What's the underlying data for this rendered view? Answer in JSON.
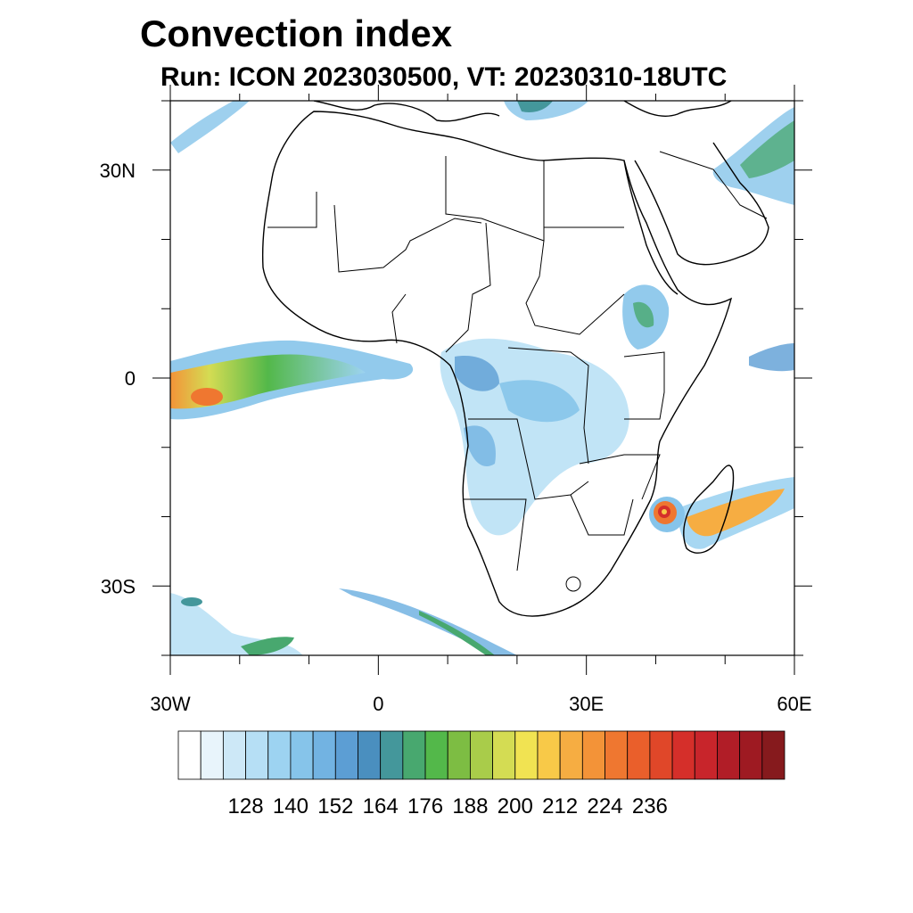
{
  "title": "Convection index",
  "subtitle": "Run: ICON 2023030500,  VT: 20230310-18UTC",
  "axes": {
    "lat_ticks": [
      {
        "value": 30,
        "label": "30N"
      },
      {
        "value": 0,
        "label": "0"
      },
      {
        "value": -30,
        "label": "30S"
      }
    ],
    "lon_ticks": [
      {
        "value": -30,
        "label": "30W"
      },
      {
        "value": 0,
        "label": "0"
      },
      {
        "value": 30,
        "label": "30E"
      },
      {
        "value": 60,
        "label": "60E"
      }
    ],
    "lon_range": [
      -30,
      60
    ],
    "lat_range": [
      -40,
      40
    ]
  },
  "colorbar": {
    "labels": [
      "128",
      "140",
      "152",
      "164",
      "176",
      "188",
      "200",
      "212",
      "224",
      "236"
    ],
    "colors": [
      "#ffffff",
      "#e8f4fb",
      "#cde8f7",
      "#b6dff5",
      "#9dd3f1",
      "#86c4ea",
      "#72b3e2",
      "#5c9ed4",
      "#4a8fbf",
      "#44979b",
      "#48a86f",
      "#53b84a",
      "#7dbd43",
      "#a9cc4a",
      "#d4dc53",
      "#f1e352",
      "#f8c948",
      "#f6ad42",
      "#f39338",
      "#ef7730",
      "#ea5f2b",
      "#e04729",
      "#d52f2a",
      "#c8252b",
      "#b11d27",
      "#9e1a22",
      "#861a1d"
    ]
  }
}
